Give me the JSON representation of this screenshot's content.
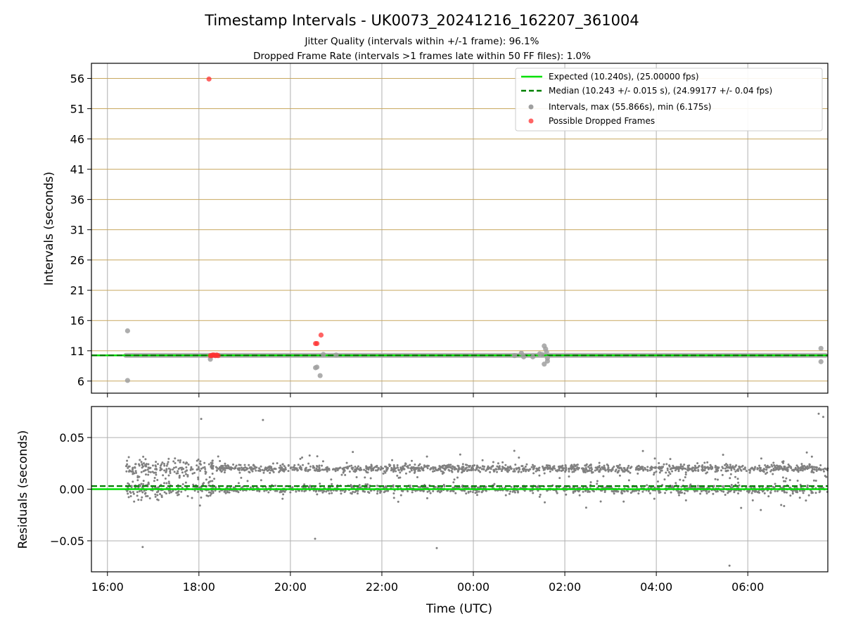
{
  "chart_data": {
    "title": "Timestamp Intervals - UK0073_20241216_162207_361004",
    "subtitle_lines": [
      "Jitter Quality (intervals within +/-1 frame): 96.1%",
      "Dropped Frame Rate (intervals >1 frames late within 50 FF files): 1.0%"
    ],
    "xlabel": "Time (UTC)",
    "x_tick_labels": [
      "16:00",
      "18:00",
      "20:00",
      "22:00",
      "00:00",
      "02:00",
      "04:00",
      "06:00"
    ],
    "panels": [
      {
        "type": "scatter",
        "ylabel": "Intervals (seconds)",
        "ylim": [
          4,
          58.5
        ],
        "yticks": [
          6,
          11,
          16,
          21,
          26,
          31,
          36,
          41,
          46,
          51,
          56
        ],
        "grid": true,
        "legend_position": "top-right",
        "legend": [
          "Expected (10.240s), (25.00000 fps)",
          "Median (10.243 +/- 0.015 s), (24.99177 +/- 0.04 fps)",
          "Intervals, max (55.866s), min (6.175s)",
          "Possible Dropped Frames"
        ],
        "expected_line": {
          "y": 10.24,
          "color": "#00e000",
          "style": "solid"
        },
        "median_line": {
          "y": 10.243,
          "color": "#008000",
          "style": "dashed"
        },
        "interval_band": {
          "y": 10.24,
          "x_start": 16.4,
          "x_end": 31.7
        },
        "intervals": [
          {
            "x": 16.44,
            "y": 14.3
          },
          {
            "x": 16.44,
            "y": 6.1
          },
          {
            "x": 18.25,
            "y": 9.6
          },
          {
            "x": 20.55,
            "y": 8.2
          },
          {
            "x": 20.58,
            "y": 8.3
          },
          {
            "x": 20.65,
            "y": 6.9
          },
          {
            "x": 20.72,
            "y": 10.4
          },
          {
            "x": 21.0,
            "y": 10.3
          },
          {
            "x": 25.5,
            "y": 10.4
          },
          {
            "x": 24.9,
            "y": 10.2
          },
          {
            "x": 25.05,
            "y": 10.6
          },
          {
            "x": 25.1,
            "y": 10.0
          },
          {
            "x": 25.3,
            "y": 10.0
          },
          {
            "x": 25.45,
            "y": 10.5
          },
          {
            "x": 25.55,
            "y": 11.8
          },
          {
            "x": 25.58,
            "y": 11.3
          },
          {
            "x": 25.6,
            "y": 10.8
          },
          {
            "x": 25.62,
            "y": 9.8
          },
          {
            "x": 25.55,
            "y": 8.8
          },
          {
            "x": 25.62,
            "y": 9.3
          },
          {
            "x": 31.6,
            "y": 11.4
          },
          {
            "x": 31.6,
            "y": 9.2
          }
        ],
        "dropped_frames": [
          {
            "x": 18.22,
            "y": 55.9
          },
          {
            "x": 18.25,
            "y": 10.2
          },
          {
            "x": 18.28,
            "y": 10.2
          },
          {
            "x": 18.3,
            "y": 10.3
          },
          {
            "x": 18.33,
            "y": 10.3
          },
          {
            "x": 18.36,
            "y": 10.2
          },
          {
            "x": 18.39,
            "y": 10.3
          },
          {
            "x": 18.42,
            "y": 10.2
          },
          {
            "x": 20.55,
            "y": 12.2
          },
          {
            "x": 20.58,
            "y": 12.2
          },
          {
            "x": 20.67,
            "y": 13.6
          }
        ]
      },
      {
        "type": "scatter",
        "ylabel": "Residuals (seconds)",
        "ylim": [
          -0.08,
          0.08
        ],
        "yticks": [
          0.05,
          0.0,
          -0.05
        ],
        "ytick_labels": [
          "0.05",
          "0.00",
          "−0.05"
        ],
        "grid": true,
        "zero_line": {
          "y": 0.0,
          "color": "#00e000",
          "style": "solid"
        },
        "median_line": {
          "y": 0.003,
          "color": "#008000",
          "style": "dashed"
        },
        "residual_summary": {
          "x_range": [
            16.4,
            31.75
          ],
          "bands": [
            0.0,
            0.02
          ],
          "count": 2600,
          "extremes": [
            {
              "x": 18.05,
              "y": 0.068
            },
            {
              "x": 19.4,
              "y": 0.067
            },
            {
              "x": 31.55,
              "y": 0.073
            },
            {
              "x": 31.65,
              "y": 0.07
            },
            {
              "x": 29.6,
              "y": -0.074
            },
            {
              "x": 16.77,
              "y": -0.056
            },
            {
              "x": 20.54,
              "y": -0.048
            },
            {
              "x": 23.2,
              "y": -0.057
            }
          ]
        }
      }
    ],
    "x_unit": "hours since 16:00 UTC on day 1 (24 = 00:00 next day)",
    "xlim": [
      15.65,
      31.75
    ],
    "colors": {
      "grid_vertical": "#b0b0b0",
      "grid_horizontal_top": "#c8a860",
      "interval": "#a0a0a0",
      "dropped": "#ff3030",
      "residual": "#808080",
      "expected": "#00e000",
      "median": "#008000"
    }
  }
}
